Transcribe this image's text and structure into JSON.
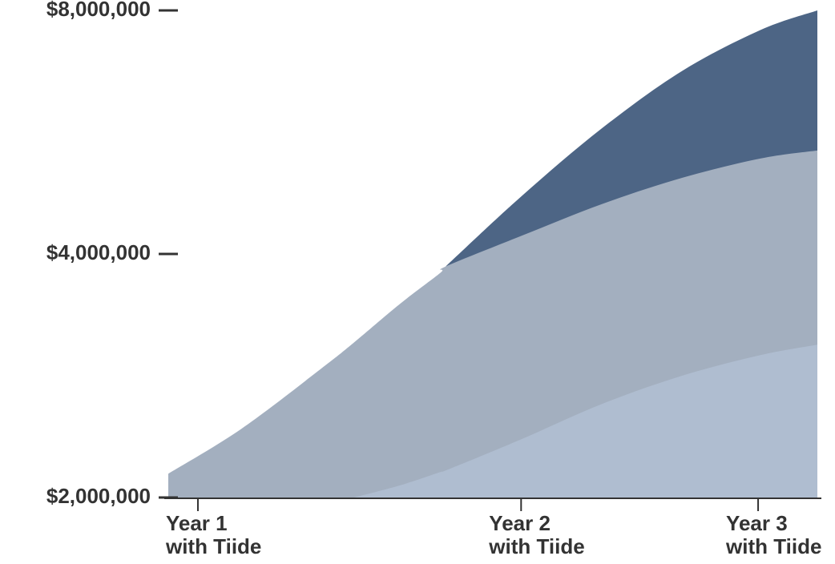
{
  "chart_data": {
    "type": "area",
    "x": [
      0.89,
      1.16,
      1.46,
      1.58,
      1.75,
      1.9,
      1.92,
      2.2,
      2.5,
      2.8,
      3.09,
      3.3
    ],
    "xlim": [
      0.89,
      3.3
    ],
    "xticks": [
      {
        "value": 1,
        "label": "Year 1\nwith Tiide"
      },
      {
        "value": 2.2,
        "label": "Year 2\nwith Tiide"
      },
      {
        "value": 3.08,
        "label": "Year 3\nwith Tiide"
      }
    ],
    "ylim": [
      2000000,
      8000000
    ],
    "log_scale": true,
    "yticks": [
      {
        "value": 2000000,
        "label": "$2,000,000"
      },
      {
        "value": 4000000,
        "label": "$4,000,000"
      },
      {
        "value": 8000000,
        "label": "$8,000,000"
      }
    ],
    "series": [
      {
        "color": "#4d6585",
        "values": [
          null,
          null,
          null,
          null,
          null,
          null,
          3860000,
          4710000,
          5720000,
          6740000,
          7570000,
          8000000
        ]
      },
      {
        "color": "#a3afbf",
        "values": [
          2140000,
          2430000,
          2890000,
          3110000,
          3470000,
          3790000,
          3860000,
          4210000,
          4610000,
          4970000,
          5250000,
          5370000
        ]
      },
      {
        "color": "#afbdd0",
        "values": [
          null,
          null,
          null,
          2000000,
          2070000,
          2150000,
          2160000,
          2360000,
          2610000,
          2830000,
          3000000,
          3090000
        ]
      }
    ]
  }
}
